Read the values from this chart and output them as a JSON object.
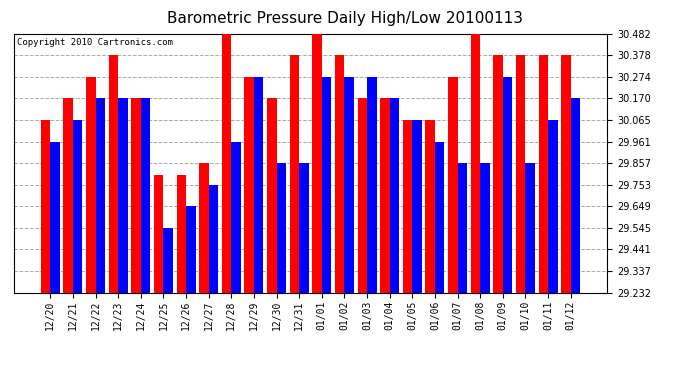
{
  "title": "Barometric Pressure Daily High/Low 20100113",
  "copyright": "Copyright 2010 Cartronics.com",
  "categories": [
    "12/20",
    "12/21",
    "12/22",
    "12/23",
    "12/24",
    "12/25",
    "12/26",
    "12/27",
    "12/28",
    "12/29",
    "12/30",
    "12/31",
    "01/01",
    "01/02",
    "01/03",
    "01/04",
    "01/05",
    "01/06",
    "01/07",
    "01/08",
    "01/09",
    "01/10",
    "01/11",
    "01/12"
  ],
  "highs": [
    30.065,
    30.17,
    30.274,
    30.378,
    30.17,
    29.8,
    29.8,
    29.857,
    30.482,
    30.274,
    30.17,
    30.378,
    30.482,
    30.378,
    30.17,
    30.17,
    30.065,
    30.065,
    30.274,
    30.482,
    30.378,
    30.378,
    30.378,
    30.378
  ],
  "lows": [
    29.961,
    30.065,
    30.17,
    30.17,
    30.17,
    29.545,
    29.649,
    29.753,
    29.961,
    30.274,
    29.857,
    29.857,
    30.274,
    30.274,
    30.274,
    30.17,
    30.065,
    29.961,
    29.857,
    29.857,
    30.274,
    29.857,
    30.065,
    30.17
  ],
  "ymin": 29.232,
  "ymax": 30.482,
  "yticks": [
    29.232,
    29.337,
    29.441,
    29.545,
    29.649,
    29.753,
    29.857,
    29.961,
    30.065,
    30.17,
    30.274,
    30.378,
    30.482
  ],
  "high_color": "#ff0000",
  "low_color": "#0000ff",
  "bg_color": "#ffffff",
  "grid_color": "#aaaaaa",
  "title_fontsize": 11,
  "copyright_fontsize": 6.5,
  "tick_fontsize": 7,
  "xlabel_rotation": 90
}
